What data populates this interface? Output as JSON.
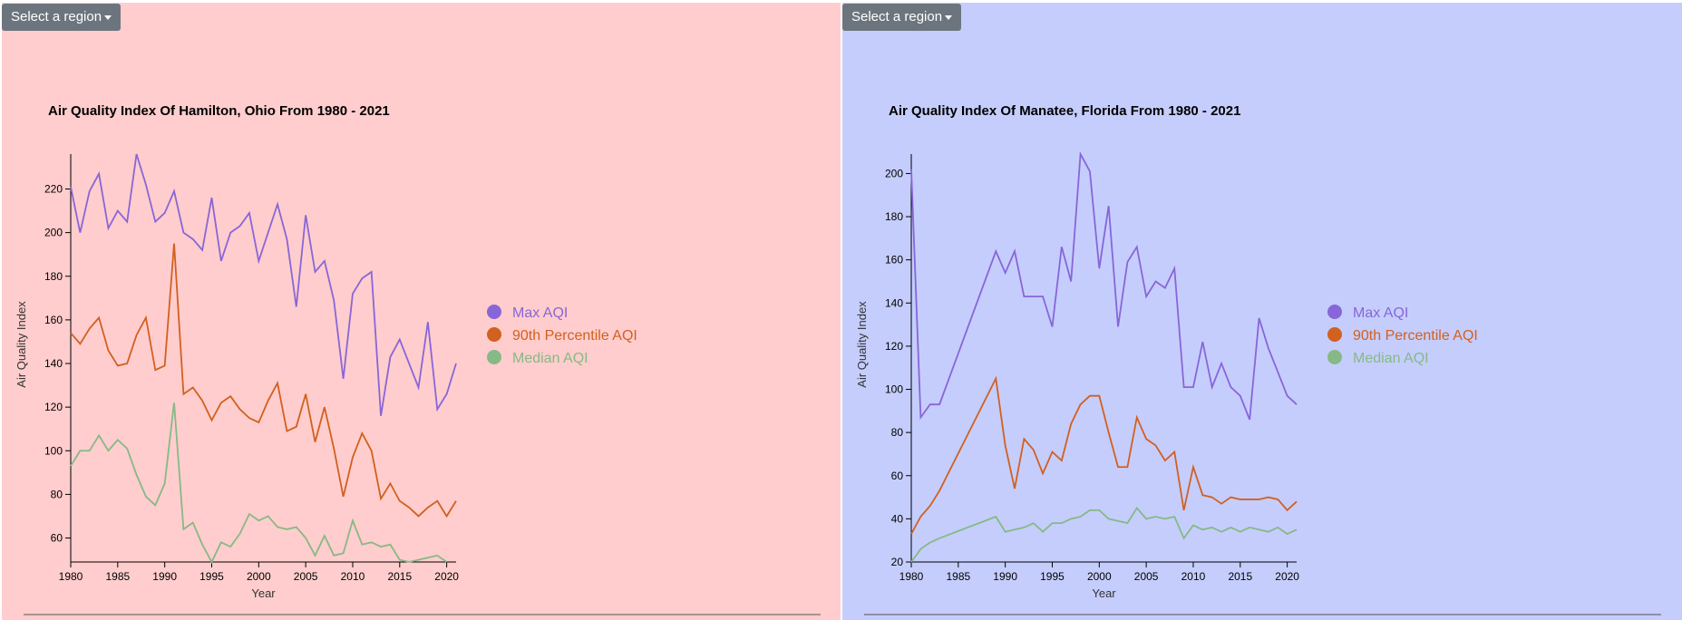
{
  "ui": {
    "buttons": [
      "Select a region",
      "Select a region"
    ]
  },
  "chart_data": [
    {
      "type": "line",
      "title": "Air Quality Index Of Hamilton, Ohio From 1980 - 2021",
      "x_label": "Year",
      "y_label": "Air Quality Index",
      "background": "#ffcdcd",
      "legend": "right",
      "x": [
        1980,
        1981,
        1982,
        1983,
        1984,
        1985,
        1986,
        1987,
        1988,
        1989,
        1990,
        1991,
        1992,
        1993,
        1994,
        1995,
        1996,
        1997,
        1998,
        1999,
        2000,
        2001,
        2002,
        2003,
        2004,
        2005,
        2006,
        2007,
        2008,
        2009,
        2010,
        2011,
        2012,
        2013,
        2014,
        2015,
        2016,
        2017,
        2018,
        2019,
        2020,
        2021
      ],
      "xlim": [
        1980,
        2021
      ],
      "xticks": [
        1980,
        1985,
        1990,
        1995,
        2000,
        2005,
        2010,
        2015,
        2020
      ],
      "ylim": [
        49,
        236
      ],
      "yticks": [
        60,
        80,
        100,
        120,
        140,
        160,
        180,
        200,
        220
      ],
      "series": [
        {
          "name": "Max AQI",
          "color": "#8866d8",
          "values": [
            221,
            200,
            219,
            227,
            202,
            210,
            205,
            236,
            222,
            205,
            209,
            219,
            200,
            197,
            192,
            216,
            187,
            200,
            203,
            209,
            187,
            200,
            213,
            197,
            166,
            208,
            182,
            187,
            169,
            133,
            172,
            179,
            182,
            116,
            143,
            151,
            140,
            129,
            159,
            119,
            126,
            140
          ]
        },
        {
          "name": "90th Percentile AQI",
          "color": "#d2601f",
          "values": [
            154,
            149,
            156,
            161,
            146,
            139,
            140,
            153,
            161,
            137,
            139,
            195,
            126,
            129,
            123,
            114,
            122,
            125,
            119,
            115,
            113,
            123,
            131,
            109,
            111,
            126,
            104,
            120,
            101,
            79,
            97,
            108,
            100,
            78,
            85,
            77,
            74,
            70,
            74,
            77,
            70,
            77
          ]
        },
        {
          "name": "Median AQI",
          "color": "#86b985",
          "values": [
            93,
            100,
            100,
            107,
            100,
            105,
            101,
            89,
            79,
            75,
            85,
            122,
            64,
            67,
            57,
            49,
            58,
            56,
            62,
            71,
            68,
            70,
            65,
            64,
            65,
            60,
            52,
            61,
            52,
            53,
            68,
            57,
            58,
            56,
            57,
            50,
            49,
            50,
            51,
            52,
            49,
            null
          ]
        }
      ]
    },
    {
      "type": "line",
      "title": "Air Quality Index Of Manatee, Florida From 1980 - 2021",
      "x_label": "Year",
      "y_label": "Air Quality Index",
      "background": "#c5cdfd",
      "legend": "right",
      "x": [
        1980,
        1981,
        1982,
        1983,
        1989,
        1990,
        1991,
        1992,
        1993,
        1994,
        1995,
        1996,
        1997,
        1998,
        1999,
        2000,
        2001,
        2002,
        2003,
        2004,
        2005,
        2006,
        2007,
        2008,
        2009,
        2010,
        2011,
        2012,
        2013,
        2014,
        2015,
        2016,
        2017,
        2018,
        2019,
        2020,
        2021
      ],
      "xlim": [
        1980,
        2021
      ],
      "xticks": [
        1980,
        1985,
        1990,
        1995,
        2000,
        2005,
        2010,
        2015,
        2020
      ],
      "ylim": [
        20,
        209
      ],
      "yticks": [
        20,
        40,
        60,
        80,
        100,
        120,
        140,
        160,
        180,
        200
      ],
      "series": [
        {
          "name": "Max AQI",
          "color": "#8866d8",
          "values": [
            202,
            87,
            93,
            93,
            164,
            154,
            164,
            143,
            143,
            143,
            129,
            166,
            150,
            209,
            201,
            156,
            185,
            129,
            159,
            166,
            143,
            150,
            147,
            156,
            101,
            101,
            122,
            101,
            112,
            101,
            97,
            86,
            133,
            119,
            108,
            97,
            93
          ]
        },
        {
          "name": "90th Percentile AQI",
          "color": "#d2601f",
          "values": [
            33,
            41,
            46,
            53,
            105,
            74,
            54,
            77,
            72,
            61,
            71,
            67,
            84,
            93,
            97,
            97,
            80,
            64,
            64,
            87,
            77,
            74,
            67,
            71,
            44,
            64,
            51,
            50,
            47,
            50,
            49,
            49,
            49,
            50,
            49,
            44,
            48
          ]
        },
        {
          "name": "Median AQI",
          "color": "#86b985",
          "values": [
            20,
            26,
            29,
            31,
            41,
            34,
            35,
            36,
            38,
            34,
            38,
            38,
            40,
            41,
            44,
            44,
            40,
            39,
            38,
            45,
            40,
            41,
            40,
            41,
            31,
            37,
            35,
            36,
            34,
            36,
            34,
            36,
            35,
            34,
            36,
            33,
            35
          ]
        }
      ]
    }
  ]
}
